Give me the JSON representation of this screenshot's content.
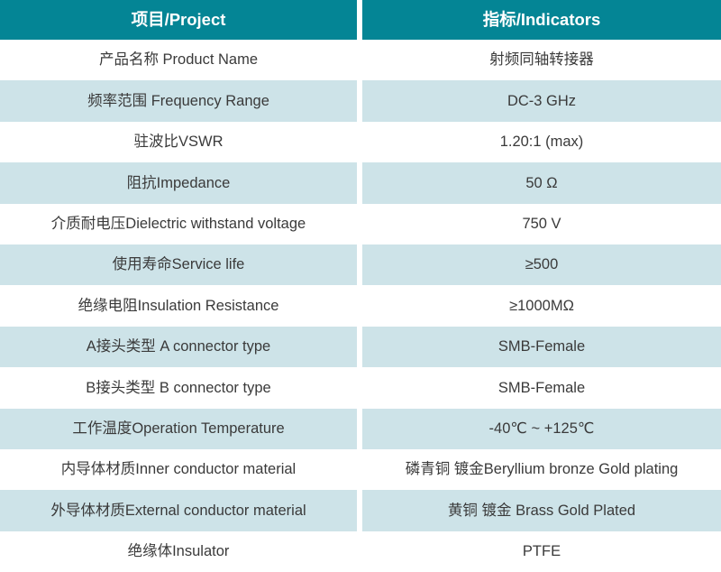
{
  "table": {
    "headers": {
      "project": "项目/Project",
      "indicators": "指标/Indicators"
    },
    "rows": [
      {
        "project": "产品名称 Product Name",
        "indicator": "射频同轴转接器"
      },
      {
        "project": "频率范围 Frequency Range",
        "indicator": "DC-3 GHz"
      },
      {
        "project": "驻波比VSWR",
        "indicator": "1.20:1 (max)"
      },
      {
        "project": "阻抗Impedance",
        "indicator": "50 Ω"
      },
      {
        "project": "介质耐电压Dielectric withstand voltage",
        "indicator": "750 V"
      },
      {
        "project": "使用寿命Service life",
        "indicator": "≥500"
      },
      {
        "project": "绝缘电阻Insulation Resistance",
        "indicator": "≥1000MΩ"
      },
      {
        "project": "A接头类型 A connector type",
        "indicator": "SMB-Female"
      },
      {
        "project": "B接头类型 B connector type",
        "indicator": "SMB-Female"
      },
      {
        "project": "工作温度Operation Temperature",
        "indicator": "-40℃ ~ +125℃"
      },
      {
        "project": "内导体材质Inner conductor material",
        "indicator": "磷青铜 镀金Beryllium bronze Gold plating"
      },
      {
        "project": "外导体材质External conductor material",
        "indicator": "黄铜 镀金 Brass Gold Plated"
      },
      {
        "project": "绝缘体Insulator",
        "indicator": "PTFE"
      }
    ],
    "colors": {
      "header_bg": "#048595",
      "header_text": "#ffffff",
      "row_bg": "#ffffff",
      "row_alt_bg": "#cde3e8",
      "text": "#3a3a3a"
    }
  }
}
